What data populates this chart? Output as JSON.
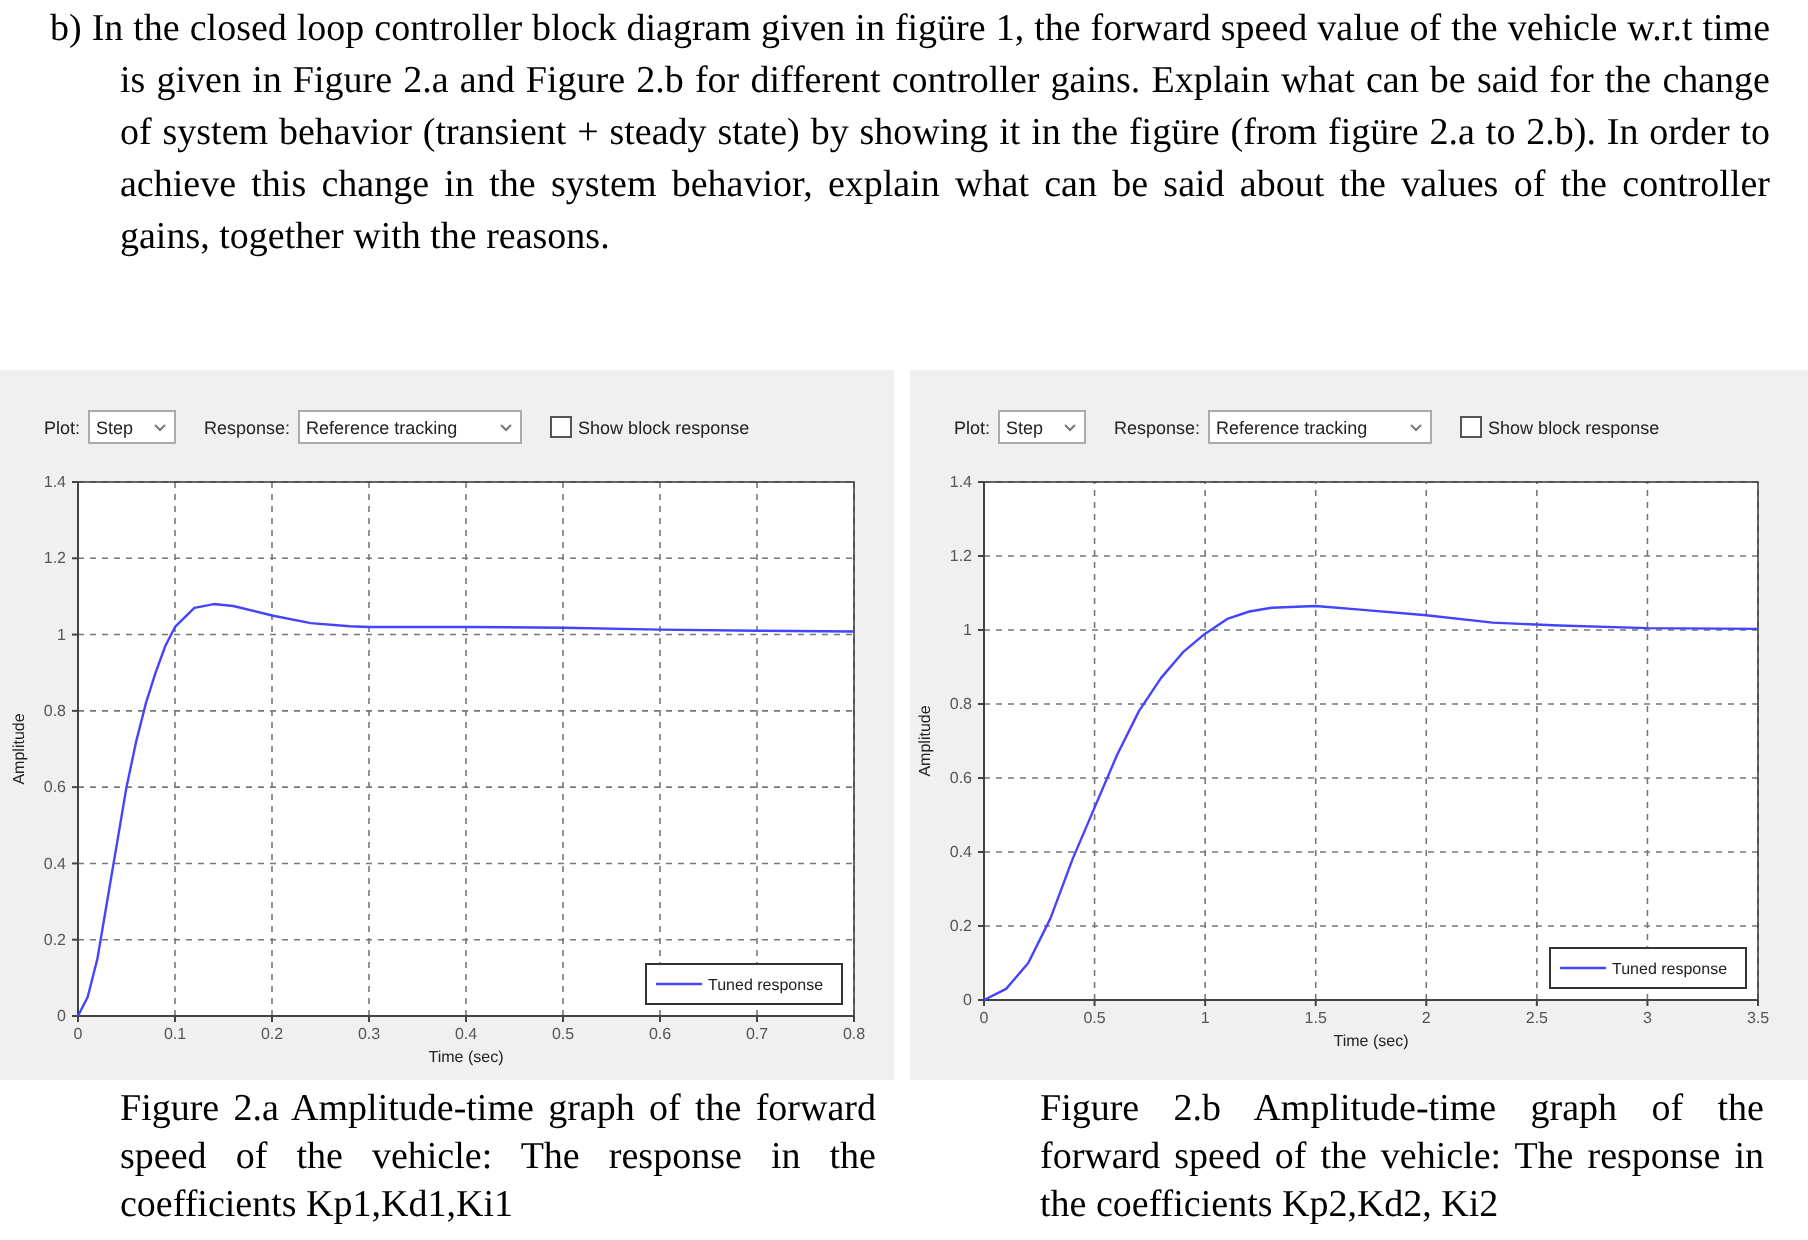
{
  "chart_data": [
    {
      "type": "line",
      "title": "b) In the closed loop controller block diagram given in figüre 1, the forward speed value of the vehicle w.r.t time is given in Figure 2.a and Figure 2.b for different controller gains. Explain what can be said for the change of system behavior (transient + steady state) by showing it in the figüre (from figüre 2.a to 2.b). In order to achieve this change in the system behavior, explain what can be said about the values of the controller gains, together with the reasons.",
      "xlabel": "Time (sec)",
      "ylabel": "Amplitude",
      "annotations": [
        "Plot:",
        "Step",
        "Response:",
        "Reference tracking",
        "Show block response",
        "Figure 2.a  Amplitude-time graph of the forward speed of the vehicle: The response in the coefficients Kp1,Kd1,Ki1"
      ],
      "x": [
        0,
        0.01,
        0.02,
        0.03,
        0.04,
        0.05,
        0.06,
        0.07,
        0.08,
        0.09,
        0.1,
        0.12,
        0.14,
        0.16,
        0.2,
        0.24,
        0.28,
        0.3,
        0.4,
        0.5,
        0.6,
        0.7,
        0.8
      ],
      "series": [
        {
          "name": "Tuned response",
          "color": "#4444ff",
          "values": [
            0,
            0.05,
            0.15,
            0.3,
            0.45,
            0.6,
            0.72,
            0.82,
            0.9,
            0.97,
            1.02,
            1.07,
            1.08,
            1.075,
            1.05,
            1.03,
            1.022,
            1.02,
            1.02,
            1.018,
            1.013,
            1.01,
            1.008
          ]
        }
      ],
      "xlim": [
        0,
        0.8
      ],
      "xticks": [
        0,
        0.1,
        0.2,
        0.3,
        0.4,
        0.5,
        0.6,
        0.7,
        0.8
      ],
      "ylim": [
        0,
        1.4
      ],
      "yticks": [
        0,
        0.2,
        0.4,
        0.6,
        0.8,
        1,
        1.2,
        1.4
      ],
      "grid": true,
      "legend": "bottom right"
    },
    {
      "type": "line",
      "xlabel": "Time (sec)",
      "ylabel": "Amplitude",
      "annotations": [
        "Plot:",
        "Step",
        "Response:",
        "Reference tracking",
        "Show block response",
        "Figure 2.b Amplitude-time graph of the forward speed of the vehicle: The response in the coefficients Kp2,Kd2, Ki2"
      ],
      "x": [
        0,
        0.1,
        0.2,
        0.3,
        0.4,
        0.5,
        0.6,
        0.7,
        0.8,
        0.9,
        1,
        1.1,
        1.2,
        1.3,
        1.5,
        1.7,
        2,
        2.3,
        2.6,
        3,
        3.5
      ],
      "series": [
        {
          "name": "Tuned response",
          "color": "#4444ff",
          "values": [
            0,
            0.03,
            0.1,
            0.22,
            0.38,
            0.52,
            0.66,
            0.78,
            0.87,
            0.94,
            0.99,
            1.03,
            1.05,
            1.06,
            1.065,
            1.055,
            1.04,
            1.02,
            1.012,
            1.005,
            1.003
          ]
        }
      ],
      "xlim": [
        0,
        3.5
      ],
      "xticks": [
        0,
        0.5,
        1,
        1.5,
        2,
        2.5,
        3,
        3.5
      ],
      "ylim": [
        0,
        1.4
      ],
      "yticks": [
        0,
        0.2,
        0.4,
        0.6,
        0.8,
        1,
        1.2,
        1.4
      ],
      "grid": true,
      "legend": "bottom right"
    }
  ]
}
